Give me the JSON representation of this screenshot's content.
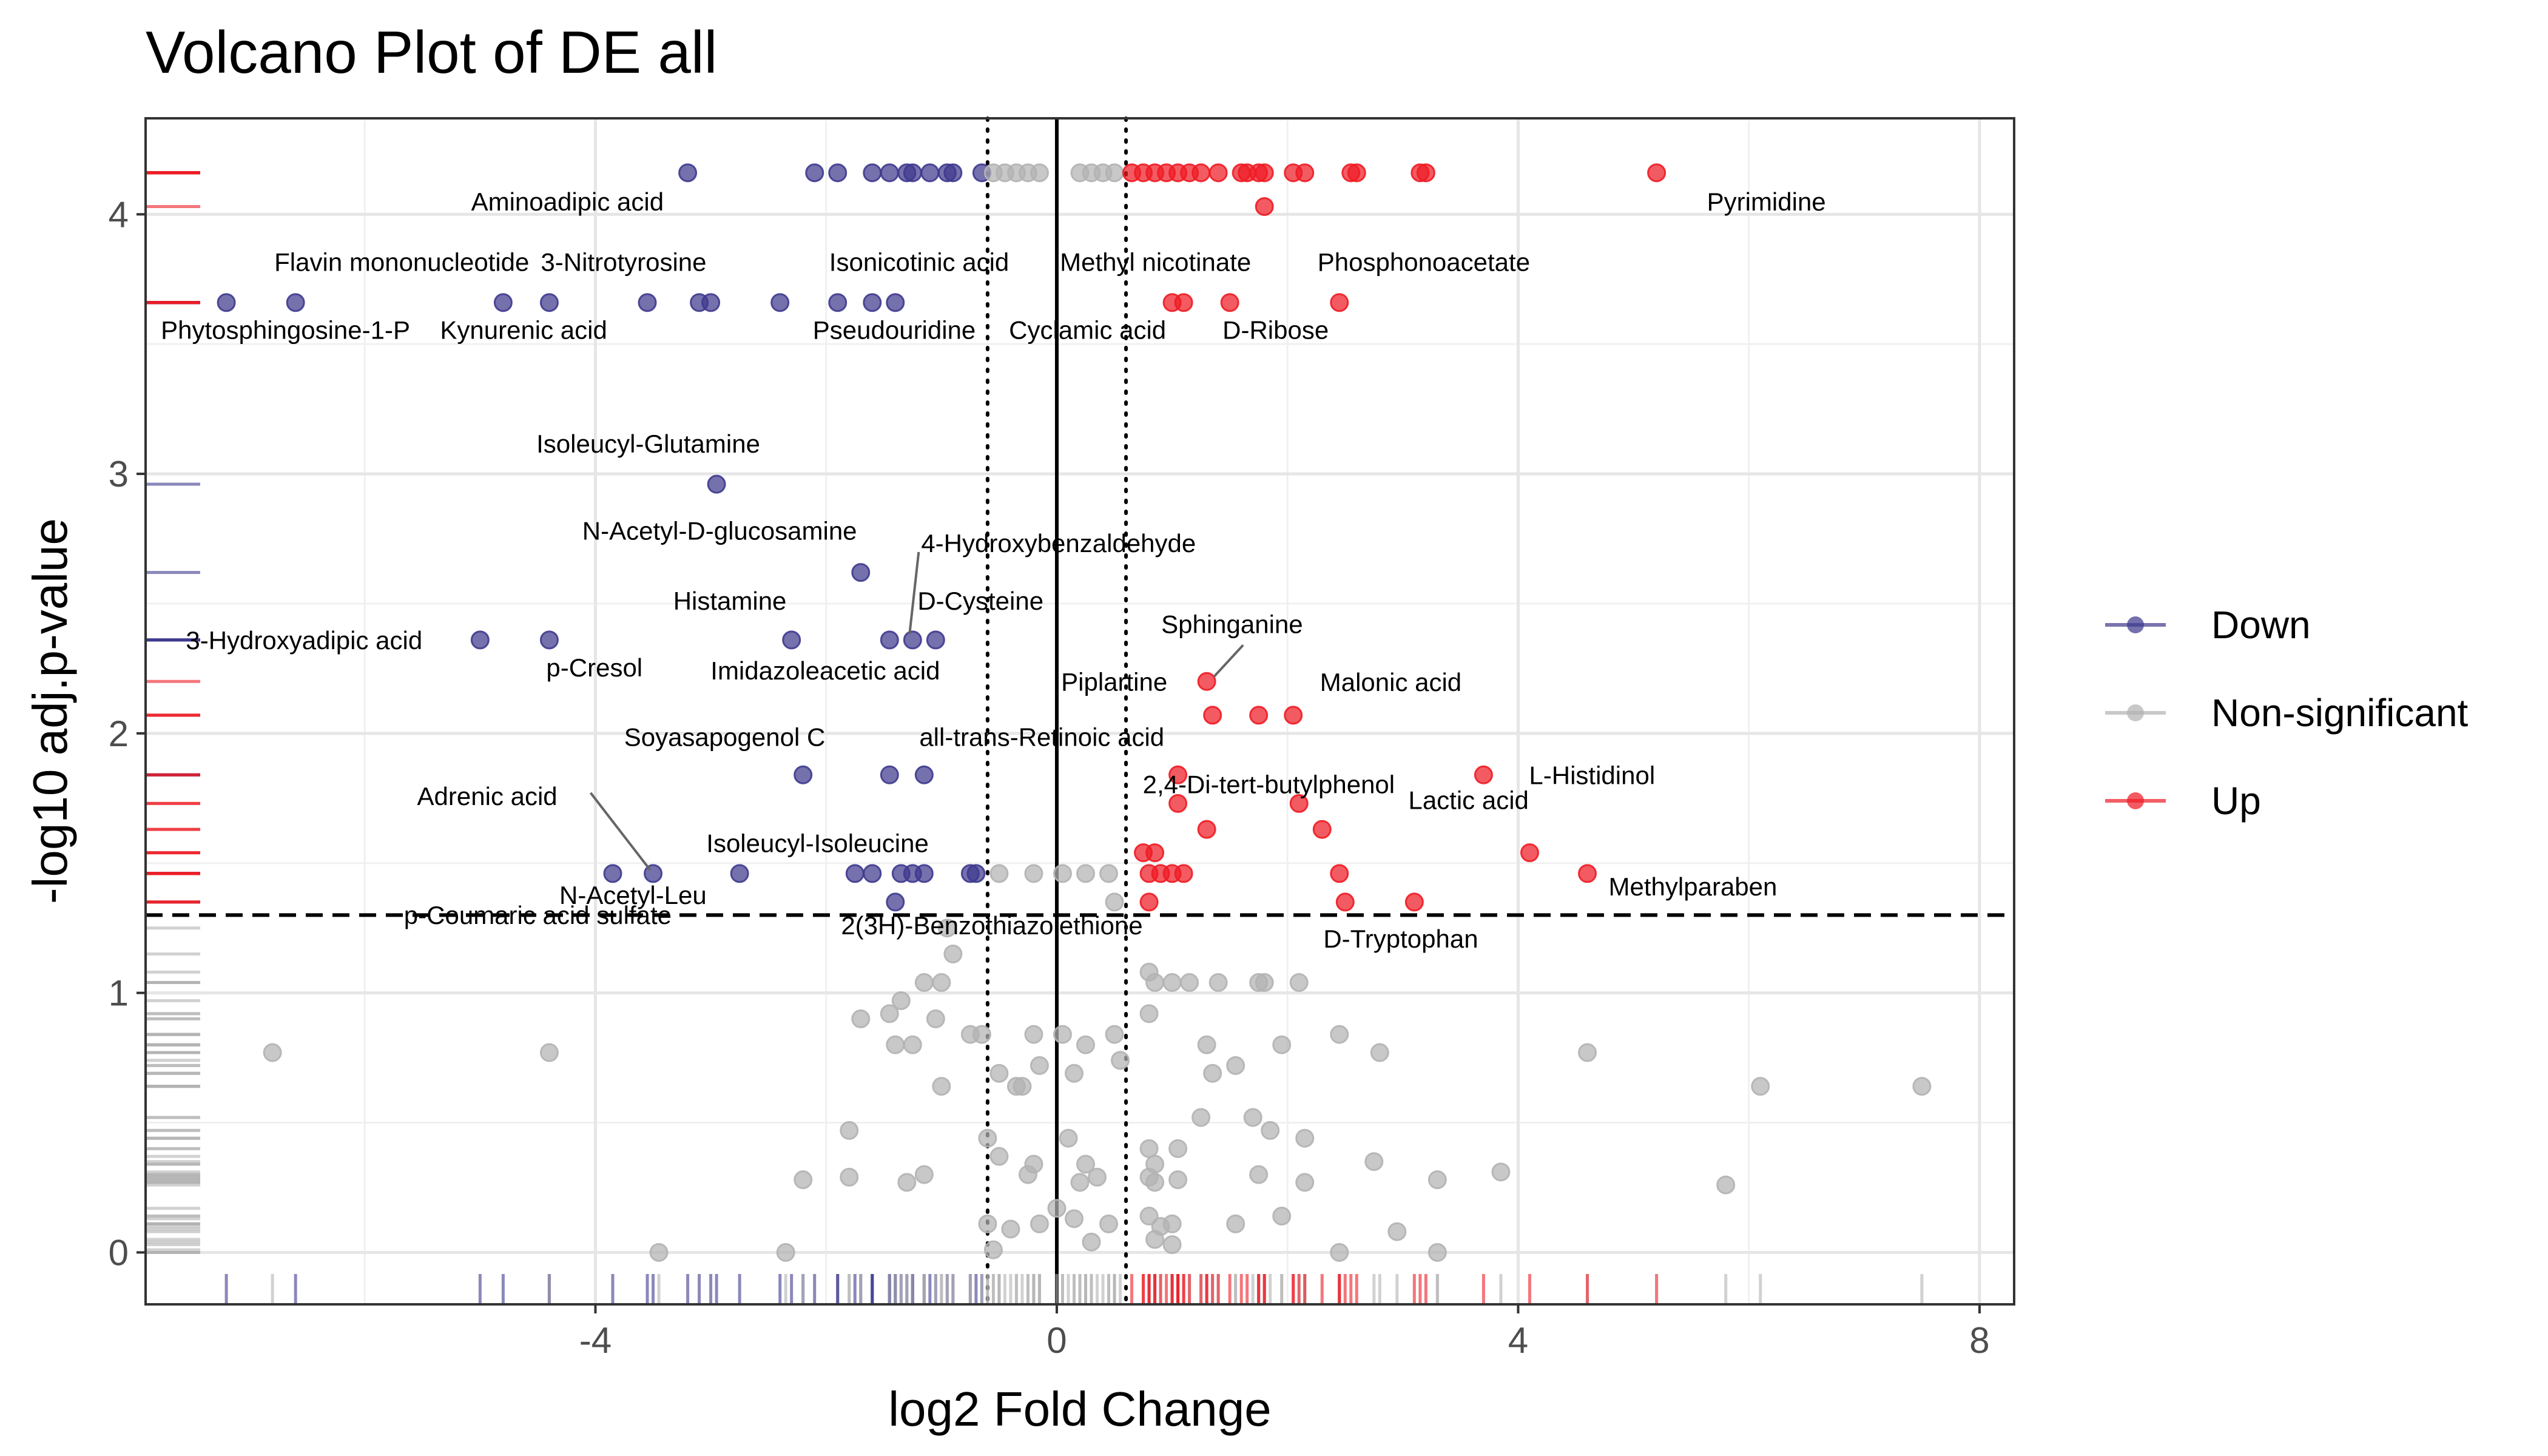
{
  "chart_data": {
    "type": "scatter",
    "title": "Volcano Plot of DE all",
    "xlabel": "log2 Fold Change",
    "ylabel": "-log10 adj.p-value",
    "xlim": [
      -7.9,
      8.3
    ],
    "ylim": [
      -0.2,
      4.37
    ],
    "x_ticks": [
      -4,
      0,
      4,
      8
    ],
    "x_tick_labels": [
      "-4",
      "0",
      "4",
      "8"
    ],
    "y_ticks": [
      0,
      1,
      2,
      3,
      4
    ],
    "y_tick_labels": [
      "0",
      "1",
      "2",
      "3",
      "4"
    ],
    "grid": true,
    "thresholds": {
      "fc_lines": [
        -0.6,
        0.6
      ],
      "zero_line": 0,
      "p_line": 1.3
    },
    "legend_position": "right",
    "legend": [
      {
        "key": "down",
        "name": "Down",
        "color": "#3f3a8e"
      },
      {
        "key": "ns",
        "name": "Non-significant",
        "color": "#b3b3b3"
      },
      {
        "key": "up",
        "name": "Up",
        "color": "#ee1c25"
      }
    ],
    "series": [
      {
        "key": "down",
        "points": [
          [
            -3.2,
            4.16
          ],
          [
            -2.1,
            4.16
          ],
          [
            -1.9,
            4.16
          ],
          [
            -1.6,
            4.16
          ],
          [
            -1.45,
            4.16
          ],
          [
            -1.3,
            4.16
          ],
          [
            -1.25,
            4.16
          ],
          [
            -1.1,
            4.16
          ],
          [
            -0.95,
            4.16
          ],
          [
            -0.9,
            4.16
          ],
          [
            -0.65,
            4.16
          ],
          [
            -7.2,
            3.66
          ],
          [
            -6.6,
            3.66
          ],
          [
            -4.8,
            3.66
          ],
          [
            -4.4,
            3.66
          ],
          [
            -3.55,
            3.66
          ],
          [
            -3.1,
            3.66
          ],
          [
            -3.0,
            3.66
          ],
          [
            -2.4,
            3.66
          ],
          [
            -1.9,
            3.66
          ],
          [
            -1.6,
            3.66
          ],
          [
            -1.4,
            3.66
          ],
          [
            -2.95,
            2.96
          ],
          [
            -1.7,
            2.62
          ],
          [
            -5.0,
            2.36
          ],
          [
            -4.4,
            2.36
          ],
          [
            -2.3,
            2.36
          ],
          [
            -1.45,
            2.36
          ],
          [
            -1.25,
            2.36
          ],
          [
            -1.05,
            2.36
          ],
          [
            -2.2,
            1.84
          ],
          [
            -1.45,
            1.84
          ],
          [
            -1.15,
            1.84
          ],
          [
            -3.85,
            1.46
          ],
          [
            -3.5,
            1.46
          ],
          [
            -2.75,
            1.46
          ],
          [
            -1.75,
            1.46
          ],
          [
            -1.6,
            1.46
          ],
          [
            -1.35,
            1.46
          ],
          [
            -1.25,
            1.46
          ],
          [
            -1.15,
            1.46
          ],
          [
            -0.75,
            1.46
          ],
          [
            -0.7,
            1.46
          ],
          [
            -1.4,
            1.35
          ]
        ]
      },
      {
        "key": "ns",
        "points": [
          [
            -0.55,
            4.16
          ],
          [
            -0.45,
            4.16
          ],
          [
            -0.35,
            4.16
          ],
          [
            -0.25,
            4.16
          ],
          [
            -0.15,
            4.16
          ],
          [
            0.2,
            4.16
          ],
          [
            0.3,
            4.16
          ],
          [
            0.4,
            4.16
          ],
          [
            0.5,
            4.16
          ],
          [
            -0.5,
            1.46
          ],
          [
            -0.2,
            1.46
          ],
          [
            0.05,
            1.46
          ],
          [
            0.25,
            1.46
          ],
          [
            0.45,
            1.46
          ],
          [
            0.5,
            1.35
          ],
          [
            -0.95,
            1.25
          ],
          [
            -0.9,
            1.15
          ],
          [
            -1.15,
            1.04
          ],
          [
            -1.0,
            1.04
          ],
          [
            -1.35,
            0.97
          ],
          [
            -1.45,
            0.92
          ],
          [
            -1.7,
            0.9
          ],
          [
            -1.05,
            0.9
          ],
          [
            -1.4,
            0.8
          ],
          [
            -1.25,
            0.8
          ],
          [
            -0.75,
            0.84
          ],
          [
            -0.65,
            0.84
          ],
          [
            -0.2,
            0.84
          ],
          [
            -0.15,
            0.72
          ],
          [
            0.05,
            0.84
          ],
          [
            0.25,
            0.8
          ],
          [
            0.5,
            0.84
          ],
          [
            0.55,
            0.74
          ],
          [
            -0.5,
            0.69
          ],
          [
            -0.3,
            0.64
          ],
          [
            -0.35,
            0.64
          ],
          [
            -1.0,
            0.64
          ],
          [
            0.15,
            0.69
          ],
          [
            0.8,
            1.08
          ],
          [
            0.85,
            1.04
          ],
          [
            1.0,
            1.04
          ],
          [
            1.15,
            1.04
          ],
          [
            1.4,
            1.04
          ],
          [
            1.75,
            1.04
          ],
          [
            1.8,
            1.04
          ],
          [
            2.1,
            1.04
          ],
          [
            0.8,
            0.92
          ],
          [
            1.3,
            0.8
          ],
          [
            1.35,
            0.69
          ],
          [
            1.55,
            0.72
          ],
          [
            1.95,
            0.8
          ],
          [
            2.45,
            0.84
          ],
          [
            2.8,
            0.77
          ],
          [
            4.6,
            0.77
          ],
          [
            6.1,
            0.64
          ],
          [
            7.5,
            0.64
          ],
          [
            -6.8,
            0.77
          ],
          [
            -4.4,
            0.77
          ],
          [
            -1.8,
            0.47
          ],
          [
            -0.6,
            0.44
          ],
          [
            -0.2,
            0.34
          ],
          [
            -0.5,
            0.37
          ],
          [
            -0.25,
            0.3
          ],
          [
            -1.8,
            0.29
          ],
          [
            -1.15,
            0.3
          ],
          [
            -1.3,
            0.27
          ],
          [
            -2.2,
            0.28
          ],
          [
            0.1,
            0.44
          ],
          [
            0.25,
            0.34
          ],
          [
            0.35,
            0.29
          ],
          [
            0.2,
            0.27
          ],
          [
            0.8,
            0.4
          ],
          [
            0.85,
            0.34
          ],
          [
            1.05,
            0.4
          ],
          [
            1.25,
            0.52
          ],
          [
            1.7,
            0.52
          ],
          [
            1.85,
            0.47
          ],
          [
            2.15,
            0.44
          ],
          [
            2.75,
            0.35
          ],
          [
            3.3,
            0.28
          ],
          [
            3.85,
            0.31
          ],
          [
            5.8,
            0.26
          ],
          [
            0.8,
            0.29
          ],
          [
            0.85,
            0.27
          ],
          [
            1.05,
            0.28
          ],
          [
            1.75,
            0.3
          ],
          [
            2.15,
            0.27
          ],
          [
            -0.15,
            0.11
          ],
          [
            0.0,
            0.17
          ],
          [
            0.15,
            0.13
          ],
          [
            0.45,
            0.11
          ],
          [
            0.8,
            0.14
          ],
          [
            0.9,
            0.1
          ],
          [
            1.0,
            0.11
          ],
          [
            1.55,
            0.11
          ],
          [
            1.95,
            0.14
          ],
          [
            2.95,
            0.08
          ],
          [
            -0.6,
            0.11
          ],
          [
            -0.4,
            0.09
          ],
          [
            -3.45,
            0.0
          ],
          [
            -2.35,
            0.0
          ],
          [
            2.45,
            0.0
          ],
          [
            3.3,
            0.0
          ],
          [
            0.85,
            0.05
          ],
          [
            1.0,
            0.03
          ],
          [
            -0.55,
            0.01
          ],
          [
            0.3,
            0.04
          ]
        ]
      },
      {
        "key": "up",
        "points": [
          [
            0.65,
            4.16
          ],
          [
            0.75,
            4.16
          ],
          [
            0.85,
            4.16
          ],
          [
            0.95,
            4.16
          ],
          [
            1.05,
            4.16
          ],
          [
            1.15,
            4.16
          ],
          [
            1.25,
            4.16
          ],
          [
            1.4,
            4.16
          ],
          [
            1.6,
            4.16
          ],
          [
            1.65,
            4.16
          ],
          [
            1.75,
            4.16
          ],
          [
            1.8,
            4.16
          ],
          [
            2.05,
            4.16
          ],
          [
            2.15,
            4.16
          ],
          [
            2.55,
            4.16
          ],
          [
            2.6,
            4.16
          ],
          [
            3.15,
            4.16
          ],
          [
            3.2,
            4.16
          ],
          [
            5.2,
            4.16
          ],
          [
            1.8,
            4.03
          ],
          [
            1.0,
            3.66
          ],
          [
            1.1,
            3.66
          ],
          [
            1.5,
            3.66
          ],
          [
            2.45,
            3.66
          ],
          [
            1.3,
            2.2
          ],
          [
            1.35,
            2.07
          ],
          [
            1.75,
            2.07
          ],
          [
            2.05,
            2.07
          ],
          [
            3.7,
            1.84
          ],
          [
            1.05,
            1.84
          ],
          [
            1.05,
            1.73
          ],
          [
            2.1,
            1.73
          ],
          [
            1.3,
            1.63
          ],
          [
            2.3,
            1.63
          ],
          [
            4.1,
            1.54
          ],
          [
            4.6,
            1.46
          ],
          [
            0.75,
            1.54
          ],
          [
            0.85,
            1.54
          ],
          [
            0.8,
            1.46
          ],
          [
            0.9,
            1.46
          ],
          [
            1.0,
            1.46
          ],
          [
            1.1,
            1.46
          ],
          [
            2.45,
            1.46
          ],
          [
            0.8,
            1.35
          ],
          [
            2.5,
            1.35
          ],
          [
            3.1,
            1.35
          ]
        ]
      }
    ],
    "annotations": [
      {
        "text": "Aminoadipic acid",
        "x": -3.2,
        "y": 4.16
      },
      {
        "text": "Pyrimidine",
        "x": 5.2,
        "y": 4.16
      },
      {
        "text": "Flavin mononucleotide",
        "x": -6.6,
        "y": 3.66
      },
      {
        "text": "3-Nitrotyrosine",
        "x": -4.4,
        "y": 3.66
      },
      {
        "text": "Isonicotinic acid",
        "x": -1.4,
        "y": 3.66
      },
      {
        "text": "Methyl nicotinate",
        "x": 1.0,
        "y": 3.66
      },
      {
        "text": "Phosphonoacetate",
        "x": 2.45,
        "y": 3.66
      },
      {
        "text": "Phytosphingosine-1-P",
        "x": -7.2,
        "y": 3.66
      },
      {
        "text": "Kynurenic acid",
        "x": -4.8,
        "y": 3.66
      },
      {
        "text": "Pseudouridine",
        "x": -1.6,
        "y": 3.66
      },
      {
        "text": "Cyclamic acid",
        "x": 1.1,
        "y": 3.66
      },
      {
        "text": "D-Ribose",
        "x": 1.5,
        "y": 3.66
      },
      {
        "text": "Isoleucyl-Glutamine",
        "x": -2.95,
        "y": 2.96
      },
      {
        "text": "N-Acetyl-D-glucosamine",
        "x": -1.7,
        "y": 2.62
      },
      {
        "text": "4-Hydroxybenzaldehyde",
        "x": -1.25,
        "y": 2.36
      },
      {
        "text": "Histamine",
        "x": -2.3,
        "y": 2.36
      },
      {
        "text": "D-Cysteine",
        "x": -1.05,
        "y": 2.36
      },
      {
        "text": "3-Hydroxyadipic acid",
        "x": -5.0,
        "y": 2.36
      },
      {
        "text": "p-Cresol",
        "x": -4.4,
        "y": 2.36
      },
      {
        "text": "Imidazoleacetic acid",
        "x": -1.45,
        "y": 2.36
      },
      {
        "text": "Sphinganine",
        "x": 1.3,
        "y": 2.2
      },
      {
        "text": "Piplartine",
        "x": 1.3,
        "y": 2.2
      },
      {
        "text": "Malonic acid",
        "x": 2.05,
        "y": 2.07
      },
      {
        "text": "Soyasapogenol C",
        "x": -2.2,
        "y": 1.84
      },
      {
        "text": "all-trans-Retinoic acid",
        "x": -1.15,
        "y": 1.84
      },
      {
        "text": "2,4-Di-tert-butylphenol",
        "x": 1.05,
        "y": 1.84
      },
      {
        "text": "L-Histidinol",
        "x": 3.7,
        "y": 1.84
      },
      {
        "text": "Adrenic acid",
        "x": -3.5,
        "y": 1.46
      },
      {
        "text": "Isoleucyl-Isoleucine",
        "x": -1.45,
        "y": 1.84
      },
      {
        "text": "2(3H)-Benzothiazolethione",
        "x": -1.25,
        "y": 1.46
      },
      {
        "text": "Lactic acid",
        "x": 4.1,
        "y": 1.54
      },
      {
        "text": "N-Acetyl-Leu",
        "x": -3.85,
        "y": 1.46
      },
      {
        "text": "p-Coumaric acid sulfate",
        "x": -1.4,
        "y": 1.35
      },
      {
        "text": "Methylparaben",
        "x": 4.6,
        "y": 1.46
      },
      {
        "text": "D-Tryptophan",
        "x": 3.1,
        "y": 1.35
      }
    ]
  }
}
